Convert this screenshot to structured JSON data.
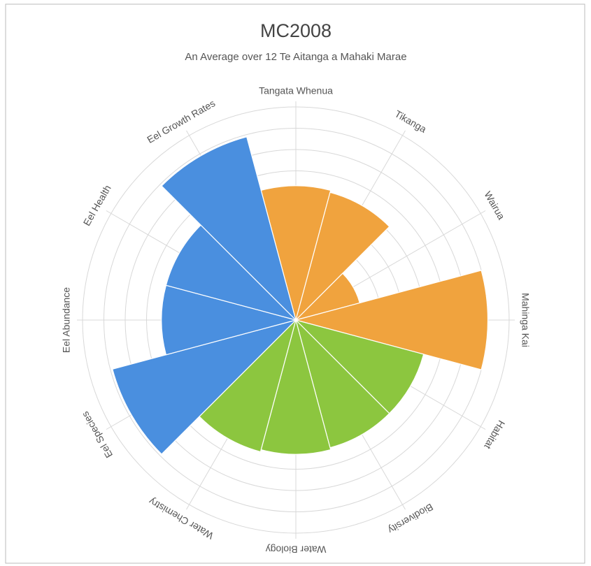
{
  "chart_data": {
    "type": "polar-area",
    "title": "MC2008",
    "subtitle": "An Average over 12 Te Aitanga a Mahaki Marae",
    "categories": [
      "Tangata Whenua",
      "Tikanga",
      "Wairua",
      "Mahinga Kai",
      "Habitat",
      "Biodiversity",
      "Water Biology",
      "Water Chemistry",
      "Eel Species",
      "Eel Abundance",
      "Eel Health",
      "Eel Growth Rates"
    ],
    "values": [
      3.15,
      3.1,
      1.55,
      4.5,
      3.1,
      3.1,
      3.15,
      3.2,
      4.45,
      3.15,
      3.15,
      4.45
    ],
    "colors": [
      "#f0a33e",
      "#f0a33e",
      "#f0a33e",
      "#f0a33e",
      "#8cc63f",
      "#8cc63f",
      "#8cc63f",
      "#8cc63f",
      "#4a8fdf",
      "#4a8fdf",
      "#4a8fdf",
      "#4a8fdf"
    ],
    "ylim": [
      0,
      5
    ],
    "yticks": [
      0.5,
      1,
      1.5,
      2,
      2.5,
      3,
      3.5,
      4,
      4.5,
      5
    ],
    "grid": true
  }
}
